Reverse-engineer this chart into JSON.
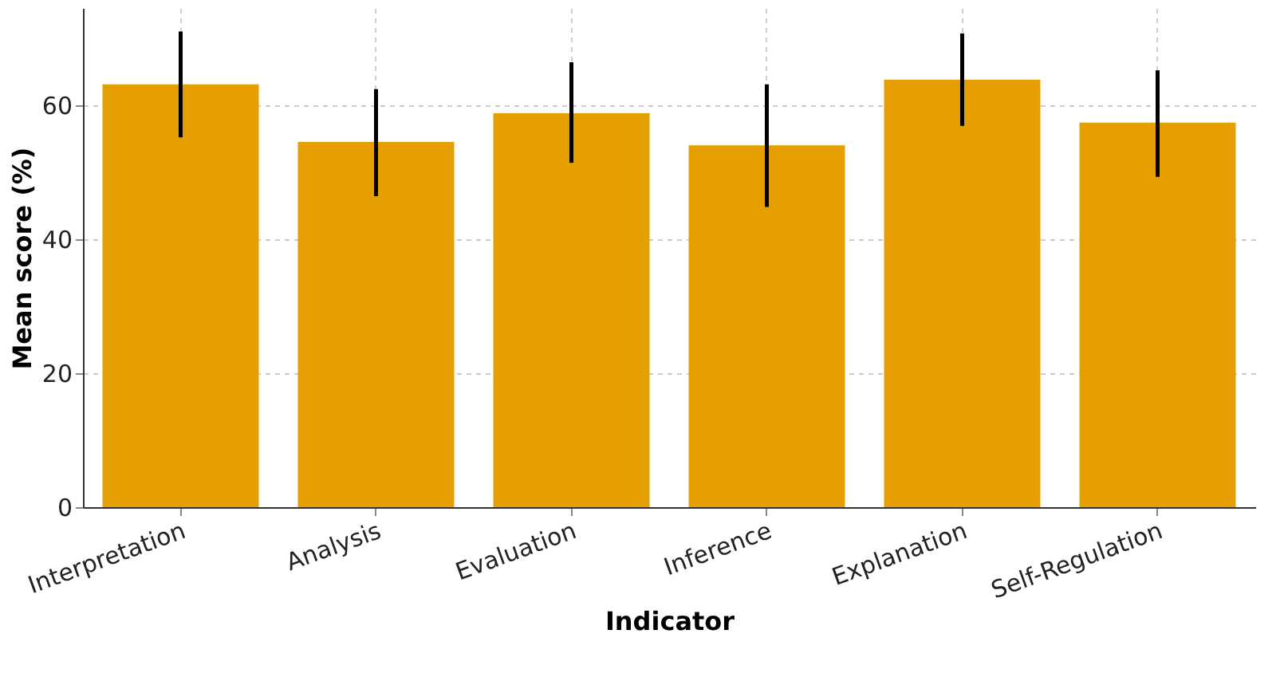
{
  "chart_data": {
    "type": "bar",
    "xlabel": "Indicator",
    "ylabel": "Mean score (%)",
    "categories": [
      "Interpretation",
      "Analysis",
      "Evaluation",
      "Inference",
      "Explanation",
      "Self-Regulation"
    ],
    "values": [
      63.1,
      54.5,
      58.8,
      54.0,
      63.8,
      57.4
    ],
    "errors": [
      [
        55.2,
        71.0
      ],
      [
        46.4,
        62.4
      ],
      [
        51.4,
        66.4
      ],
      [
        44.8,
        63.1
      ],
      [
        56.9,
        70.7
      ],
      [
        49.3,
        65.2
      ]
    ],
    "color": "#e69f00",
    "ylim": [
      0,
      74.5
    ],
    "yticks": [
      0,
      20,
      40,
      60
    ],
    "grid": true
  }
}
